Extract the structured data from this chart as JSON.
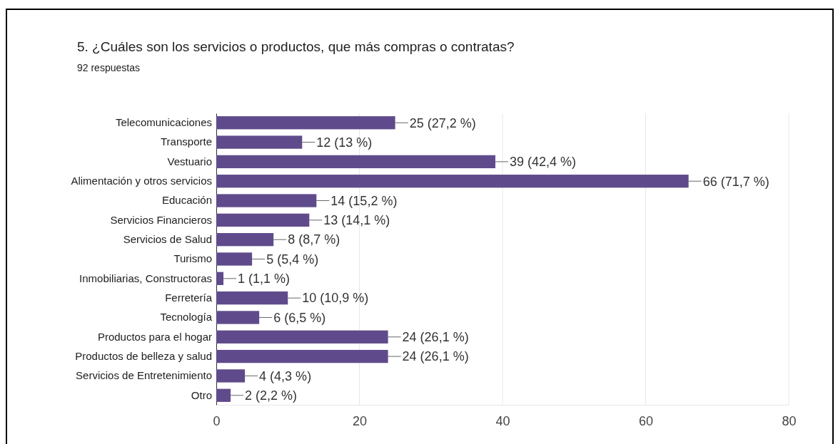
{
  "chart_data": {
    "type": "bar",
    "orientation": "horizontal",
    "title": "5. ¿Cuáles son los servicios o productos, que más compras o contratas?",
    "subtitle": "92 respuestas",
    "categories": [
      "Telecomunicaciones",
      "Transporte",
      "Vestuario",
      "Alimentación y otros servicios",
      "Educación",
      "Servicios Financieros",
      "Servicios de Salud",
      "Turismo",
      "Inmobiliarias, Constructoras",
      "Ferretería",
      "Tecnología",
      "Productos para el hogar",
      "Productos de belleza y salud",
      "Servicios de Entretenimiento",
      "Otro"
    ],
    "values": [
      25,
      12,
      39,
      66,
      14,
      13,
      8,
      5,
      1,
      10,
      6,
      24,
      24,
      4,
      2
    ],
    "value_labels": [
      "25 (27,2 %)",
      "12 (13 %)",
      "39 (42,4 %)",
      "66 (71,7 %)",
      "14 (15,2 %)",
      "13 (14,1 %)",
      "8 (8,7 %)",
      "5 (5,4 %)",
      "1 (1,1 %)",
      "10 (10,9 %)",
      "6 (6,5 %)",
      "24 (26,1 %)",
      "24 (26,1 %)",
      "4 (4,3 %)",
      "2 (2,2 %)"
    ],
    "color": "#5f4b8b",
    "xlim": [
      0,
      80
    ],
    "xticks": [
      0,
      20,
      40,
      60,
      80
    ],
    "grid": "x"
  }
}
